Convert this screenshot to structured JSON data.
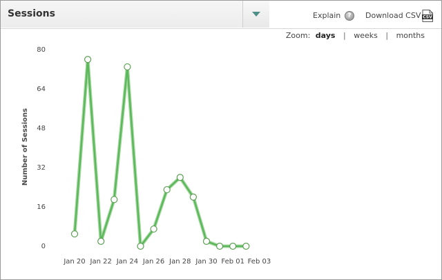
{
  "widget": {
    "title": "Sessions",
    "explain_label": "Explain",
    "download_label": "Download CSV",
    "csv_icon_text": "CSV"
  },
  "zoom": {
    "label": "Zoom:",
    "options": [
      "days",
      "weeks",
      "months"
    ],
    "active": "days"
  },
  "colors": {
    "line": "#5cb85c",
    "line_shadow": "#a9d9a2",
    "marker_fill": "#ffffff",
    "marker_stroke": "#5a9e52"
  },
  "chart_data": {
    "type": "line",
    "title": "",
    "xlabel": "",
    "ylabel": "Number of Sessions",
    "ylim": [
      0,
      80
    ],
    "y_ticks": [
      0,
      16,
      32,
      48,
      64,
      80
    ],
    "x_tick_labels": [
      "Jan 20",
      "Jan 22",
      "Jan 24",
      "Jan 26",
      "Jan 28",
      "Jan 30",
      "Feb 01",
      "Feb 03"
    ],
    "x": [
      "Jan 20",
      "Jan 21",
      "Jan 22",
      "Jan 23",
      "Jan 24",
      "Jan 25",
      "Jan 26",
      "Jan 27",
      "Jan 28",
      "Jan 29",
      "Jan 30",
      "Jan 31",
      "Feb 01",
      "Feb 02"
    ],
    "series": [
      {
        "name": "",
        "values": [
          5,
          76,
          2,
          19,
          73,
          0,
          7,
          23,
          28,
          20,
          2,
          0,
          0,
          0
        ]
      }
    ],
    "grid": false
  }
}
